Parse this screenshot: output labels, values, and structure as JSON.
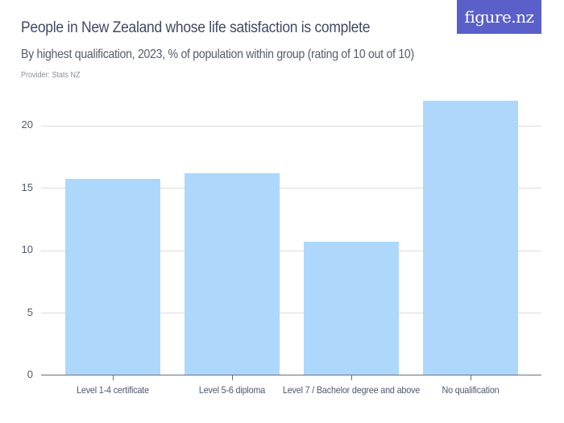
{
  "header": {
    "title": "People in New Zealand whose life satisfaction is complete",
    "subtitle": "By highest qualification, 2023, % of population within group (rating of 10 out of 10)",
    "provider": "Provider: Stats NZ",
    "logo_text": "figure.nz"
  },
  "colors": {
    "bar": "#aed8fb",
    "logo_bg": "#5a5fc9",
    "title": "#3f4a63"
  },
  "axis": {
    "y_ticks": [
      "0",
      "5",
      "10",
      "15",
      "20"
    ]
  },
  "chart_data": {
    "type": "bar",
    "title": "People in New Zealand whose life satisfaction is complete",
    "subtitle": "By highest qualification, 2023, % of population within group (rating of 10 out of 10)",
    "xlabel": "",
    "ylabel": "",
    "categories": [
      "Level 1-4 certificate",
      "Level 5-6 diploma",
      "Level 7 / Bachelor degree and above",
      "No qualification"
    ],
    "values": [
      15.7,
      16.2,
      10.7,
      22.0
    ],
    "ylim": [
      0,
      24
    ],
    "y_ticks": [
      0,
      5,
      10,
      15,
      20
    ],
    "grid": true,
    "legend": null,
    "source": "Provider: Stats NZ"
  }
}
